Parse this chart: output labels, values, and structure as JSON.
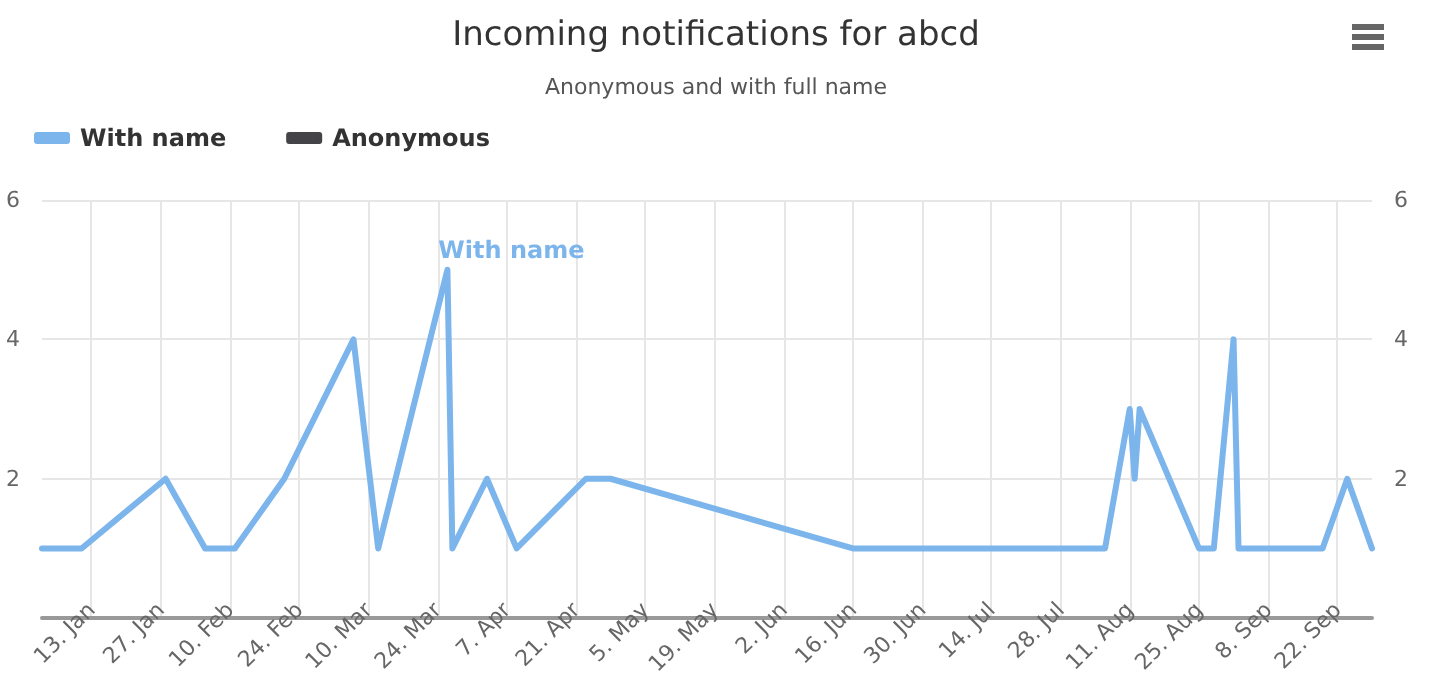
{
  "chart_data": {
    "type": "line",
    "title": "Incoming notifications for abcd",
    "subtitle": "Anonymous and with full name",
    "x": [
      "--01-03",
      "--01-11",
      "--01-28",
      "--02-05",
      "--02-11",
      "--02-21",
      "--03-07",
      "--03-12",
      "--03-26",
      "--03-27",
      "--04-03",
      "--04-09",
      "--04-23",
      "--04-28",
      "--06-16",
      "--08-06",
      "--08-11",
      "--08-12",
      "--08-13",
      "--08-25",
      "--08-28",
      "--09-01",
      "--09-02",
      "--09-19",
      "--09-24",
      "--09-29"
    ],
    "series": [
      {
        "name": "With name",
        "color": "#7cb5ec",
        "values": [
          1,
          1,
          2,
          1,
          1,
          2,
          4,
          1,
          5,
          1,
          2,
          1,
          2,
          2,
          1,
          1,
          3,
          2,
          3,
          1,
          1,
          4,
          1,
          1,
          2,
          1
        ]
      },
      {
        "name": "Anonymous",
        "color": "#434348",
        "values": [
          null,
          null,
          null,
          null,
          null,
          null,
          null,
          null,
          null,
          null,
          null,
          null,
          null,
          null,
          null,
          null,
          null,
          null,
          null,
          null,
          null,
          null,
          null,
          null,
          null,
          null
        ]
      }
    ],
    "xlim": [
      "--01-03",
      "--09-29"
    ],
    "xticks": [
      {
        "value": "--01-13",
        "label": "13. Jan"
      },
      {
        "value": "--01-27",
        "label": "27. Jan"
      },
      {
        "value": "--02-10",
        "label": "10. Feb"
      },
      {
        "value": "--02-24",
        "label": "24. Feb"
      },
      {
        "value": "--03-10",
        "label": "10. Mar"
      },
      {
        "value": "--03-24",
        "label": "24. Mar"
      },
      {
        "value": "--04-07",
        "label": "7. Apr"
      },
      {
        "value": "--04-21",
        "label": "21. Apr"
      },
      {
        "value": "--05-05",
        "label": "5. May"
      },
      {
        "value": "--05-19",
        "label": "19. May"
      },
      {
        "value": "--06-02",
        "label": "2. Jun"
      },
      {
        "value": "--06-16",
        "label": "16. Jun"
      },
      {
        "value": "--06-30",
        "label": "30. Jun"
      },
      {
        "value": "--07-14",
        "label": "14. Jul"
      },
      {
        "value": "--07-28",
        "label": "28. Jul"
      },
      {
        "value": "--08-11",
        "label": "11. Aug"
      },
      {
        "value": "--08-25",
        "label": "25. Aug"
      },
      {
        "value": "--09-08",
        "label": "8. Sep"
      },
      {
        "value": "--09-22",
        "label": "22. Sep"
      }
    ],
    "ylim": [
      0,
      6
    ],
    "yticks": [
      {
        "value": 0,
        "label": null
      },
      2,
      4,
      6
    ],
    "y2lim": [
      0,
      6
    ],
    "y2ticks": [
      2,
      4,
      6
    ],
    "grid": true,
    "legend": "top left",
    "marker": "none",
    "line_style": "solid"
  }
}
